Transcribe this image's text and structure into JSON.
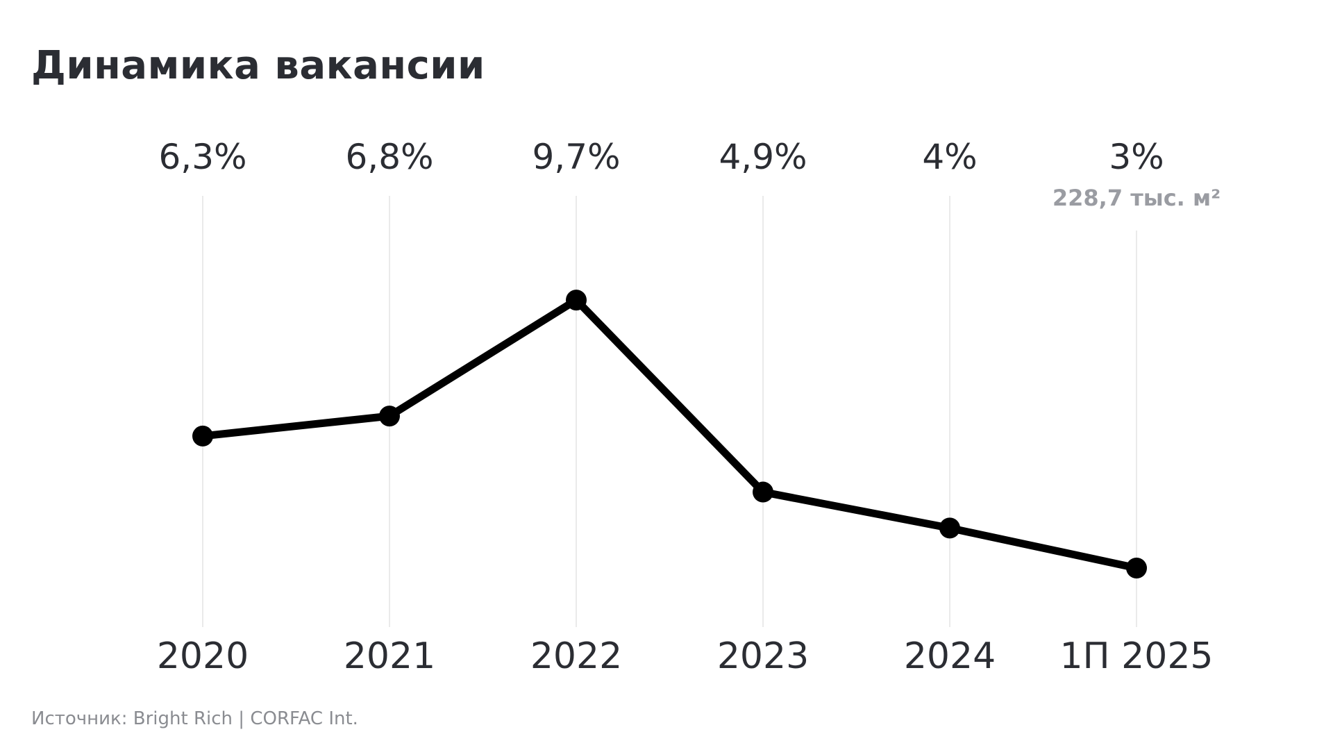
{
  "title": "Динамика вакансии",
  "source": "Источник: Bright Rich | CORFAC Int.",
  "colors": {
    "line": "#000000",
    "gridline": "#e4e4e4",
    "text": "#2b2d33",
    "note": "#9a9ca2"
  },
  "chart_data": {
    "type": "line",
    "title": "Динамика вакансии",
    "categories": [
      "2020",
      "2021",
      "2022",
      "2023",
      "2024",
      "1П 2025"
    ],
    "values": [
      6.3,
      6.8,
      9.7,
      4.9,
      4.0,
      3.0
    ],
    "value_labels": [
      "6,3%",
      "6,8%",
      "9,7%",
      "4,9%",
      "4%",
      "3%"
    ],
    "annotations": [
      {
        "category": "1П 2025",
        "text": "228,7 тыс. м²"
      }
    ],
    "ylim": [
      0,
      12
    ],
    "grid": "vertical"
  }
}
